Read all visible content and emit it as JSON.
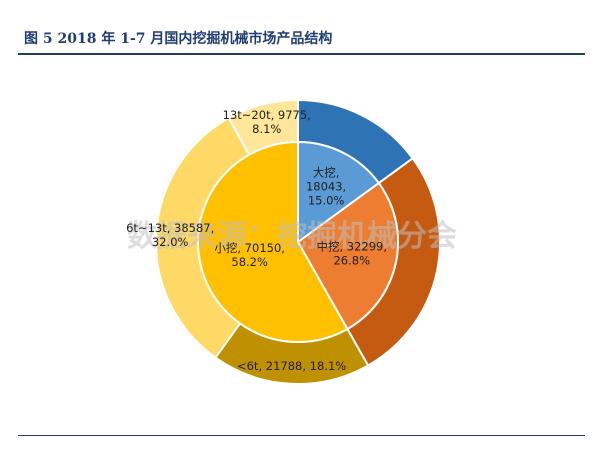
{
  "title": "图 5   2018 年 1-7 月国内挖掘机械市场产品结构",
  "watermark": "数据来源：挖掘机械分会",
  "chart_data": {
    "type": "pie",
    "subtype": "nested-donut",
    "title": "图 5   2018 年 1-7 月国内挖掘机械市场产品结构",
    "inner": [
      {
        "name": "大挖",
        "value": 18043,
        "percent": "15.0%",
        "color": "#5b9bd5",
        "label_color": "#1f1f1f"
      },
      {
        "name": "中挖",
        "value": 32299,
        "percent": "26.8%",
        "color": "#ed7d31",
        "label_color": "#1f1f1f"
      },
      {
        "name": "小挖",
        "value": 70150,
        "percent": "58.2%",
        "color": "#ffc000",
        "label_color": "#1f1f1f"
      }
    ],
    "outer": [
      {
        "name": "",
        "value": 18043,
        "percent": "",
        "color": "#2e74b5",
        "label_color": "#ffffff"
      },
      {
        "name": "",
        "value": 32299,
        "percent": "",
        "color": "#c55a11",
        "label_color": "#ffffff"
      },
      {
        "name": "<6t",
        "value": 21788,
        "percent": "18.1%",
        "color": "#bf9000",
        "label_color": "#1f1f1f"
      },
      {
        "name": "6t~13t",
        "value": 38587,
        "percent": "32.0%",
        "color": "#ffd966",
        "label_color": "#1f1f1f"
      },
      {
        "name": "13t~20t",
        "value": 9775,
        "percent": "8.1%",
        "color": "#ffe699",
        "label_color": "#1f1f1f"
      }
    ]
  }
}
